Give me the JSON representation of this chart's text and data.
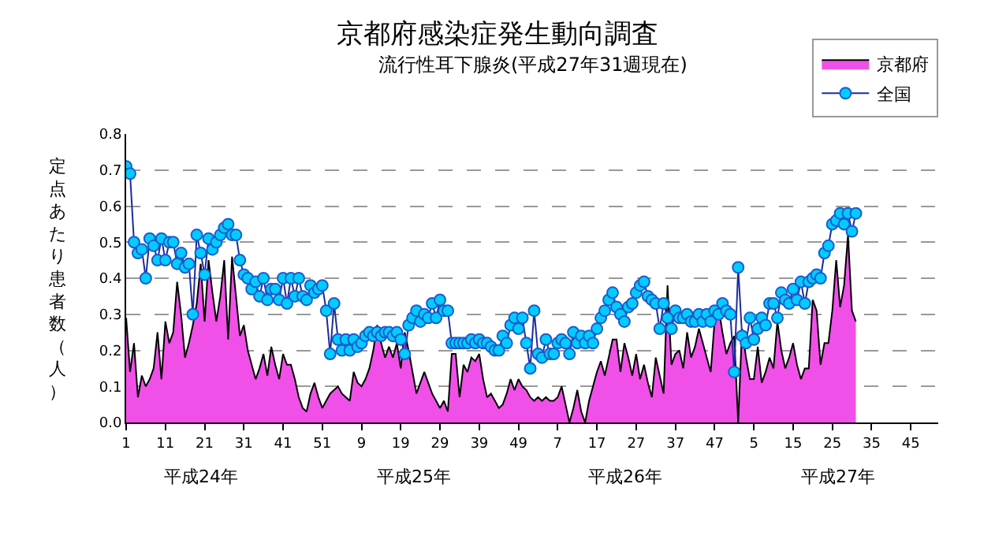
{
  "chart_data": {
    "type": "area",
    "title": "京都府感染症発生動向調査",
    "subtitle": "流行性耳下腺炎(平成27年31週現在)",
    "ylabel": "定点あたり患者数（人）",
    "annotations": [
      "平成24年",
      "平成25年",
      "平成26年",
      "平成27年"
    ],
    "categories": [
      "1",
      null,
      null,
      null,
      null,
      null,
      null,
      null,
      null,
      null,
      "11",
      null,
      null,
      null,
      null,
      null,
      null,
      null,
      null,
      null,
      "21",
      null,
      null,
      null,
      null,
      null,
      null,
      null,
      null,
      null,
      "31",
      null,
      null,
      null,
      null,
      null,
      null,
      null,
      null,
      null,
      "41",
      null,
      null,
      null,
      null,
      null,
      null,
      null,
      null,
      null,
      "51",
      null,
      null,
      null,
      null,
      null,
      null,
      null,
      null,
      null,
      "9",
      null,
      null,
      null,
      null,
      null,
      null,
      null,
      null,
      null,
      "19",
      null,
      null,
      null,
      null,
      null,
      null,
      null,
      null,
      null,
      "29",
      null,
      null,
      null,
      null,
      null,
      null,
      null,
      null,
      null,
      "39",
      null,
      null,
      null,
      null,
      null,
      null,
      null,
      null,
      null,
      "49",
      null,
      null,
      null,
      null,
      null,
      null,
      null,
      null,
      null,
      "7",
      null,
      null,
      null,
      null,
      null,
      null,
      null,
      null,
      null,
      "17",
      null,
      null,
      null,
      null,
      null,
      null,
      null,
      null,
      null,
      "27",
      null,
      null,
      null,
      null,
      null,
      null,
      null,
      null,
      null,
      "37",
      null,
      null,
      null,
      null,
      null,
      null,
      null,
      null,
      null,
      "47",
      null,
      null,
      null,
      null,
      null,
      null,
      null,
      null,
      null,
      "5",
      null,
      null,
      null,
      null,
      null,
      null,
      null,
      null,
      null,
      "15",
      null,
      null,
      null,
      null,
      null,
      null,
      null,
      null,
      null,
      "25",
      null,
      null,
      null,
      null,
      null,
      null,
      null,
      null,
      null,
      "35",
      null,
      null,
      null,
      null,
      null,
      null,
      null,
      null,
      null,
      "45",
      null,
      null,
      null,
      null,
      null,
      null,
      null
    ],
    "series": [
      {
        "name": "京都府",
        "type": "area",
        "marker": "none",
        "color": "#f050e8",
        "values": [
          0.29,
          0.14,
          0.22,
          0.07,
          0.13,
          0.1,
          0.12,
          0.15,
          0.25,
          0.12,
          0.28,
          0.22,
          0.25,
          0.39,
          0.3,
          0.18,
          0.22,
          0.27,
          0.33,
          0.44,
          0.28,
          0.45,
          0.36,
          0.28,
          0.35,
          0.45,
          0.23,
          0.46,
          0.35,
          0.24,
          0.27,
          0.2,
          0.16,
          0.12,
          0.15,
          0.19,
          0.13,
          0.21,
          0.16,
          0.12,
          0.19,
          0.16,
          0.16,
          0.12,
          0.07,
          0.04,
          0.03,
          0.08,
          0.11,
          0.07,
          0.04,
          0.06,
          0.08,
          0.09,
          0.1,
          0.08,
          0.07,
          0.06,
          0.14,
          0.11,
          0.1,
          0.12,
          0.15,
          0.2,
          0.27,
          0.22,
          0.18,
          0.21,
          0.18,
          0.22,
          0.15,
          0.25,
          0.2,
          0.14,
          0.08,
          0.11,
          0.14,
          0.11,
          0.08,
          0.06,
          0.04,
          0.06,
          0.03,
          0.19,
          0.19,
          0.07,
          0.16,
          0.14,
          0.18,
          0.17,
          0.19,
          0.12,
          0.07,
          0.08,
          0.06,
          0.04,
          0.05,
          0.08,
          0.12,
          0.09,
          0.12,
          0.1,
          0.09,
          0.07,
          0.06,
          0.07,
          0.06,
          0.07,
          0.06,
          0.06,
          0.07,
          0.1,
          0.05,
          0.0,
          0.04,
          0.09,
          0.03,
          0.0,
          0.06,
          0.1,
          0.14,
          0.17,
          0.13,
          0.18,
          0.23,
          0.23,
          0.14,
          0.22,
          0.18,
          0.13,
          0.19,
          0.12,
          0.16,
          0.11,
          0.07,
          0.18,
          0.13,
          0.08,
          0.38,
          0.16,
          0.19,
          0.2,
          0.15,
          0.25,
          0.18,
          0.21,
          0.26,
          0.22,
          0.18,
          0.14,
          0.28,
          0.32,
          0.25,
          0.19,
          0.22,
          0.24,
          0.0,
          0.26,
          0.18,
          0.12,
          0.12,
          0.21,
          0.11,
          0.14,
          0.18,
          0.15,
          0.28,
          0.2,
          0.15,
          0.18,
          0.22,
          0.16,
          0.12,
          0.15,
          0.15,
          0.34,
          0.31,
          0.16,
          0.22,
          0.22,
          0.31,
          0.45,
          0.32,
          0.38,
          0.52,
          0.31,
          0.28,
          null,
          null,
          null,
          null,
          null,
          null,
          null,
          null,
          null,
          null,
          null,
          null,
          null,
          null,
          null,
          null,
          null,
          null,
          null,
          null,
          null
        ]
      },
      {
        "name": "全国",
        "type": "line",
        "marker": "circle",
        "color": "#00ccff",
        "values": [
          0.71,
          0.69,
          0.5,
          0.47,
          0.48,
          0.4,
          0.51,
          0.49,
          0.45,
          0.51,
          0.45,
          0.5,
          0.5,
          0.44,
          0.47,
          0.43,
          0.44,
          0.3,
          0.52,
          0.47,
          0.41,
          0.51,
          0.48,
          0.5,
          0.52,
          0.54,
          0.55,
          0.52,
          0.52,
          0.45,
          0.41,
          0.4,
          0.37,
          0.39,
          0.35,
          0.4,
          0.34,
          0.37,
          0.37,
          0.34,
          0.4,
          0.33,
          0.4,
          0.35,
          0.4,
          0.35,
          0.34,
          0.38,
          0.36,
          0.37,
          0.38,
          0.31,
          0.19,
          0.33,
          0.23,
          0.2,
          0.23,
          0.2,
          0.23,
          0.21,
          0.22,
          0.24,
          0.25,
          0.24,
          0.25,
          0.24,
          0.25,
          0.25,
          0.24,
          0.25,
          0.23,
          0.19,
          0.27,
          0.29,
          0.31,
          0.28,
          0.3,
          0.29,
          0.33,
          0.29,
          0.34,
          0.31,
          0.31,
          0.22,
          0.22,
          0.22,
          0.22,
          0.22,
          0.23,
          0.22,
          0.23,
          0.22,
          0.22,
          0.21,
          0.2,
          0.2,
          0.24,
          0.22,
          0.27,
          0.29,
          0.26,
          0.29,
          0.22,
          0.15,
          0.31,
          0.19,
          0.18,
          0.23,
          0.19,
          0.19,
          0.22,
          0.23,
          0.22,
          0.19,
          0.25,
          0.22,
          0.24,
          0.22,
          0.24,
          0.22,
          0.26,
          0.29,
          0.31,
          0.34,
          0.36,
          0.32,
          0.3,
          0.28,
          0.32,
          0.33,
          0.36,
          0.38,
          0.39,
          0.35,
          0.34,
          0.33,
          0.26,
          0.33,
          0.29,
          0.26,
          0.31,
          0.29,
          0.29,
          0.3,
          0.28,
          0.28,
          0.3,
          0.28,
          0.3,
          0.28,
          0.31,
          0.3,
          0.33,
          0.31,
          0.3,
          0.14,
          0.43,
          0.24,
          0.22,
          0.29,
          0.23,
          0.26,
          0.29,
          0.27,
          0.33,
          0.33,
          0.29,
          0.36,
          0.34,
          0.33,
          0.37,
          0.34,
          0.39,
          0.33,
          0.39,
          0.4,
          0.41,
          0.4,
          0.47,
          0.49,
          0.55,
          0.56,
          0.58,
          0.55,
          0.58,
          0.53,
          0.58,
          null,
          null,
          null,
          null,
          null,
          null,
          null,
          null,
          null,
          null,
          null,
          null,
          null,
          null,
          null,
          null,
          null,
          null,
          null,
          null,
          null
        ]
      }
    ],
    "ylim": [
      0,
      0.8
    ],
    "yticks": [
      {
        "value": 0,
        "label": "0.0"
      },
      {
        "value": 0.1,
        "label": "0.1"
      },
      {
        "value": 0.2,
        "label": "0.2"
      },
      {
        "value": 0.3,
        "label": "0.3"
      },
      {
        "value": 0.4,
        "label": "0.4"
      },
      {
        "value": 0.5,
        "label": "0.5"
      },
      {
        "value": 0.6,
        "label": "0.6"
      },
      {
        "value": 0.7,
        "label": "0.7"
      },
      {
        "value": 0.8,
        "label": "0.8"
      }
    ],
    "grid": "y",
    "legend": "top right",
    "line_style": "solid"
  }
}
